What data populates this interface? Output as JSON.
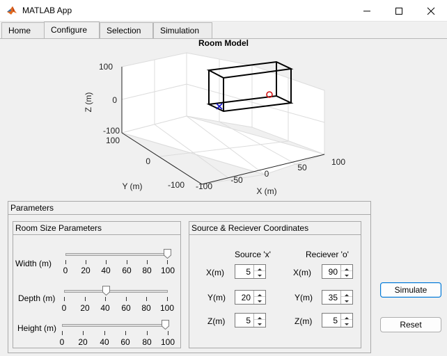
{
  "window": {
    "title": "MATLAB App"
  },
  "tabs": [
    {
      "label": "Home"
    },
    {
      "label": "Configure"
    },
    {
      "label": "Selection"
    },
    {
      "label": "Simulation"
    }
  ],
  "active_tab": "Configure",
  "plot": {
    "title": "Room Model",
    "xlabel": "X (m)",
    "ylabel": "Y (m)",
    "zlabel": "Z (m)",
    "x_ticks": [
      "-100",
      "-50",
      "0",
      "50",
      "100"
    ],
    "y_ticks": [
      "-100",
      "0",
      "100"
    ],
    "z_ticks": [
      "-100",
      "0",
      "100"
    ],
    "source_marker": "x",
    "receiver_marker": "o",
    "source_color": "#1010c8",
    "receiver_color": "#d01010"
  },
  "parameters_panel": {
    "title": "Parameters",
    "room_size": {
      "title": "Room Size Parameters",
      "sliders": [
        {
          "label": "Width (m)",
          "value": 100,
          "min": 0,
          "max": 100
        },
        {
          "label": "Depth (m)",
          "value": 40,
          "min": 0,
          "max": 100
        },
        {
          "label": "Height (m)",
          "value": 100,
          "min": 0,
          "max": 100
        }
      ],
      "tick_labels": [
        "0",
        "20",
        "40",
        "60",
        "80",
        "100"
      ]
    },
    "coordinates": {
      "title": "Source & Reciever Coordinates",
      "source_header": "Source 'x'",
      "receiver_header": "Reciever 'o'",
      "axis_labels": [
        "X(m)",
        "Y(m)",
        "Z(m)"
      ],
      "source": {
        "x": "5",
        "y": "20",
        "z": "5"
      },
      "receiver": {
        "x": "90",
        "y": "35",
        "z": "5"
      }
    }
  },
  "buttons": {
    "simulate": "Simulate",
    "reset": "Reset"
  }
}
